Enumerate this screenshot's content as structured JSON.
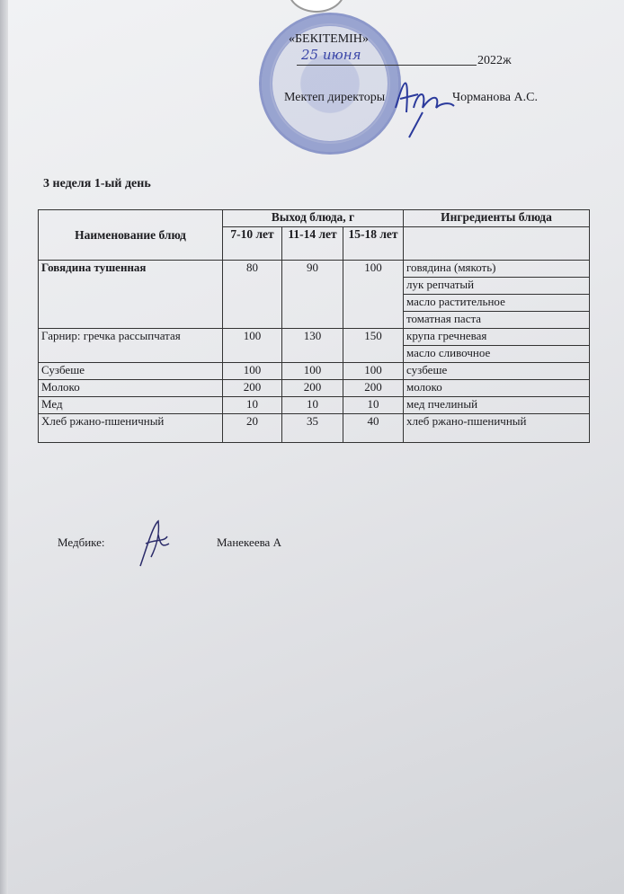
{
  "approval": {
    "stamp_text": "БЕКІТЕМІН",
    "approved_label": "«БЕКІТЕМІН»",
    "date_handwritten": "25 июня",
    "year": "2022ж",
    "position": "Мектеп директоры",
    "name": "Чорманова А.С."
  },
  "heading": "3 неделя 1-ый день",
  "table": {
    "headers": {
      "dish": "Наименование блюд",
      "yield": "Выход блюда, г",
      "age1": "7-10 лет",
      "age2": "11-14 лет",
      "age3": "15-18 лет",
      "ingredients": "Ингредиенты блюда"
    },
    "rows": [
      {
        "dish": "Говядина тушенная",
        "v1": "80",
        "v2": "90",
        "v3": "100",
        "ingredients": [
          "говядина (мякоть)",
          "лук репчатый",
          "масло растительное",
          "томатная паста"
        ]
      },
      {
        "dish": "Гарнир: гречка рассыпчатая",
        "v1": "100",
        "v2": "130",
        "v3": "150",
        "ingredients": [
          "крупа гречневая",
          "масло сливочное"
        ]
      },
      {
        "dish": "Сузбеше",
        "v1": "100",
        "v2": "100",
        "v3": "100",
        "ingredients": [
          "сузбеше"
        ]
      },
      {
        "dish": "Молоко",
        "v1": "200",
        "v2": "200",
        "v3": "200",
        "ingredients": [
          "молоко"
        ]
      },
      {
        "dish": "Мед",
        "v1": "10",
        "v2": "10",
        "v3": "10",
        "ingredients": [
          "мед пчелиный"
        ]
      },
      {
        "dish": "Хлеб ржано-пшеничный",
        "v1": "20",
        "v2": "35",
        "v3": "40",
        "ingredients": [
          "хлеб ржано-пшеничный"
        ]
      }
    ]
  },
  "medic": {
    "label": "Медбике:",
    "name": "Манекеева А"
  }
}
